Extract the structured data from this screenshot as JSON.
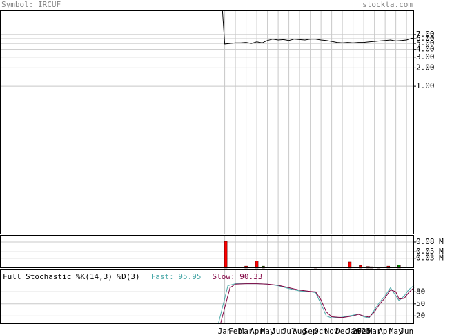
{
  "header": {
    "symbol": "Symbol: IRCUF",
    "site": "stockta.com"
  },
  "chart_data": [
    {
      "type": "line",
      "log_scale": true,
      "ylim": [
        0.0038,
        17.4
      ],
      "yticks": [
        {
          "value": 7,
          "label": "7.00"
        },
        {
          "value": 6,
          "label": "6.00"
        },
        {
          "value": 5,
          "label": "5.00"
        },
        {
          "value": 4,
          "label": "4.00"
        },
        {
          "value": 3,
          "label": "3.00"
        },
        {
          "value": 2,
          "label": "2.00"
        },
        {
          "value": 1,
          "label": "1.00"
        }
      ],
      "grid": true,
      "x": [
        -0.3,
        0,
        0.5,
        1,
        1.5,
        2,
        2.5,
        3,
        3.5,
        4,
        4.5,
        5,
        5.5,
        6,
        6.5,
        7,
        7.5,
        8,
        8.5,
        9,
        9.5,
        10,
        10.5,
        11,
        11.5,
        12,
        12.5,
        13,
        13.5,
        14,
        14.5,
        15,
        15.5,
        16,
        16.5,
        17,
        17.5,
        17.7
      ],
      "series": [
        {
          "color": "#000000",
          "values": [
            30,
            4.9,
            5.0,
            5.1,
            5.1,
            5.2,
            5.0,
            5.3,
            5.1,
            5.6,
            5.9,
            5.7,
            5.8,
            5.6,
            5.9,
            5.8,
            5.7,
            5.9,
            5.9,
            5.7,
            5.6,
            5.4,
            5.2,
            5.1,
            5.2,
            5.1,
            5.2,
            5.2,
            5.3,
            5.4,
            5.5,
            5.6,
            5.7,
            5.5,
            5.6,
            5.7,
            6.1,
            6.0
          ]
        }
      ]
    },
    {
      "type": "bar",
      "ylim": [
        0,
        0.101
      ],
      "yticks": [
        {
          "value": 0.08,
          "label": "0.08 M"
        },
        {
          "value": 0.05,
          "label": "0.05 M"
        },
        {
          "value": 0.03,
          "label": "0.03 M"
        }
      ],
      "x": [
        0.1,
        2,
        3,
        3.6,
        8.5,
        11.7,
        12.7,
        13.4,
        13.7,
        14.4,
        15.3,
        16.3
      ],
      "values": [
        0.082,
        0.006,
        0.022,
        0.006,
        0.003,
        0.019,
        0.008,
        0.005,
        0.004,
        0.003,
        0.006,
        0.009
      ],
      "colors": [
        "#ff0000",
        "#ff0000",
        "#ff0000",
        "#008000",
        "#ff0000",
        "#ff0000",
        "#ff0000",
        "#ff0000",
        "#008000",
        "#008000",
        "#ff0000",
        "#008000"
      ]
    },
    {
      "type": "line",
      "title": "Full Stochastic %K(14,3) %D(3)",
      "ylim": [
        0,
        137
      ],
      "yticks": [
        80,
        50,
        20
      ],
      "grid": true,
      "xlim": [
        -21,
        17.7
      ],
      "xticks": [
        {
          "value": 0,
          "label": "Jan"
        },
        {
          "value": 1,
          "label": "Feb"
        },
        {
          "value": 2,
          "label": "Mar"
        },
        {
          "value": 3,
          "label": "Apr"
        },
        {
          "value": 4,
          "label": "May"
        },
        {
          "value": 5,
          "label": "Jun"
        },
        {
          "value": 6,
          "label": "Jul"
        },
        {
          "value": 7,
          "label": "Aug"
        },
        {
          "value": 8,
          "label": "Sep"
        },
        {
          "value": 9,
          "label": "Oct"
        },
        {
          "value": 10,
          "label": "Nov"
        },
        {
          "value": 11,
          "label": "Dec"
        },
        {
          "value": 12,
          "label": "Jan"
        },
        {
          "value": 12.8,
          "label": "2025"
        },
        {
          "value": 13,
          "label": "Feb"
        },
        {
          "value": 14,
          "label": "Mar"
        },
        {
          "value": 15,
          "label": "Apr"
        },
        {
          "value": 16,
          "label": "May"
        },
        {
          "value": 17,
          "label": "Jun"
        }
      ],
      "series": [
        {
          "name": "Fast: 95.95",
          "color": "#4aa8a8",
          "x": [
            -0.6,
            0.3,
            1,
            2,
            3,
            4,
            5,
            6,
            6.5,
            7,
            8,
            8.5,
            9,
            9.5,
            10,
            11,
            12,
            12.5,
            13,
            13.5,
            14,
            14.5,
            15,
            15.5,
            16,
            16.3,
            16.8,
            17.2,
            17.7
          ],
          "values": [
            0,
            95,
            100,
            100,
            100,
            99,
            95,
            88,
            85,
            82,
            80,
            78,
            50,
            20,
            15,
            17,
            22,
            25,
            18,
            15,
            35,
            55,
            70,
            90,
            70,
            58,
            70,
            85,
            95.95
          ]
        },
        {
          "name": "Slow: 90.33",
          "color": "#800040",
          "x": [
            -0.4,
            0.5,
            1,
            2,
            3,
            4,
            5,
            6,
            6.5,
            7,
            8,
            8.5,
            9,
            9.5,
            10,
            11,
            12,
            12.5,
            13,
            13.5,
            14,
            14.5,
            15,
            15.5,
            16,
            16.3,
            16.8,
            17.2,
            17.7
          ],
          "values": [
            0,
            90,
            99,
            100,
            100,
            99,
            96,
            90,
            87,
            84,
            81,
            80,
            60,
            30,
            18,
            16,
            20,
            24,
            20,
            17,
            30,
            50,
            65,
            85,
            80,
            62,
            64,
            78,
            90.33
          ]
        }
      ]
    }
  ]
}
